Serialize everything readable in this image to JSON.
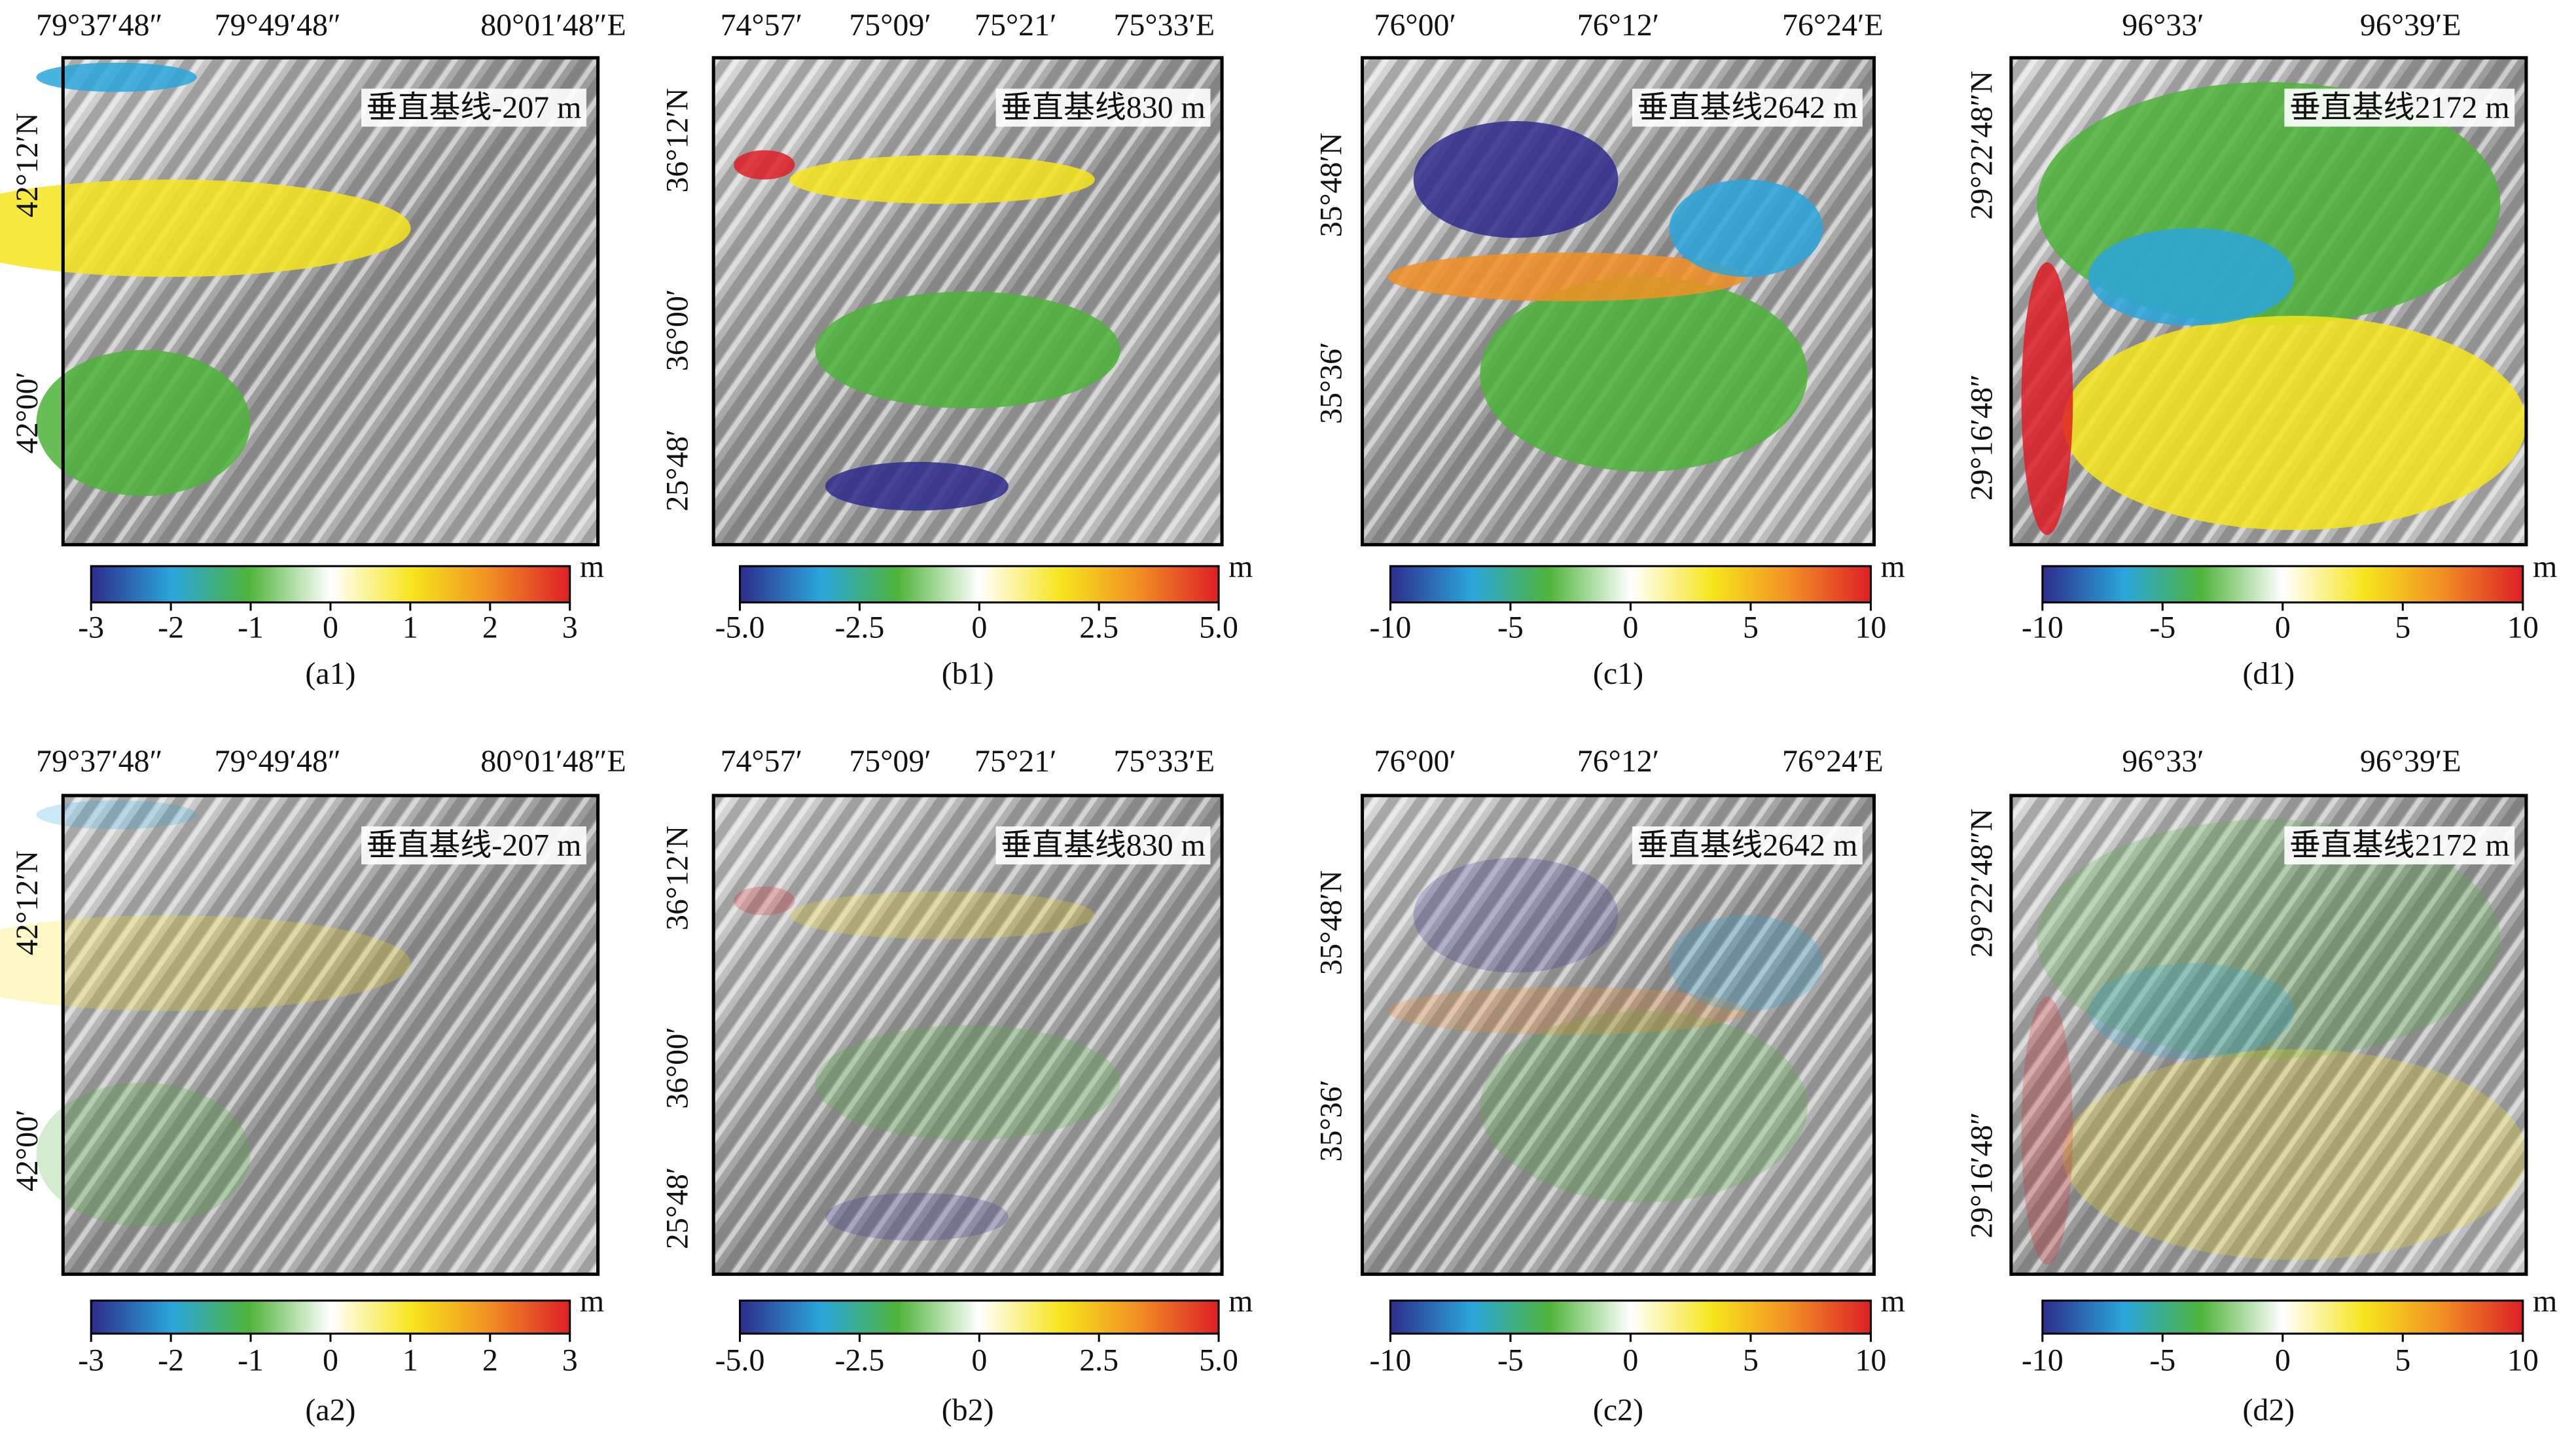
{
  "panels": [
    {
      "label": "(a1)",
      "baseline_label": "垂直基线-207 m",
      "lon_labels": [
        "79°37′48″",
        "79°49′48″",
        "80°01′48″E"
      ],
      "lat_labels": [
        "42°12′N",
        "42°00′"
      ],
      "colorbar": {
        "unit": "m",
        "clim": [
          -3,
          3
        ],
        "ticks": [
          -3,
          -2,
          -1,
          0,
          1,
          2,
          3
        ]
      }
    },
    {
      "label": "(b1)",
      "baseline_label": "垂直基线830 m",
      "lon_labels": [
        "74°57′",
        "75°09′",
        "75°21′",
        "75°33′E"
      ],
      "lat_labels": [
        "36°12′N",
        "36°00′",
        "25°48′"
      ],
      "colorbar": {
        "unit": "m",
        "clim": [
          -5,
          5
        ],
        "ticks": [
          {
            "value": -5,
            "label": "-5.0"
          },
          -2.5,
          0,
          2.5,
          {
            "value": 5,
            "label": "5.0"
          }
        ]
      }
    },
    {
      "label": "(c1)",
      "baseline_label": "垂直基线2642 m",
      "lon_labels": [
        "76°00′",
        "76°12′",
        "76°24′E"
      ],
      "lat_labels": [
        "35°48′N",
        "35°36′"
      ],
      "colorbar": {
        "unit": "m",
        "clim": [
          -10,
          10
        ],
        "ticks": [
          -10,
          -5,
          0,
          5,
          10
        ]
      }
    },
    {
      "label": "(d1)",
      "baseline_label": "垂直基线2172 m",
      "lon_labels": [
        "96°33′",
        "96°39′E"
      ],
      "lat_labels": [
        "29°22′48″N",
        "29°16′48″"
      ],
      "colorbar": {
        "unit": "m",
        "clim": [
          -10,
          10
        ],
        "ticks": [
          -10,
          -5,
          0,
          5,
          10
        ]
      }
    },
    {
      "label": "(a2)",
      "baseline_label": "垂直基线-207 m",
      "lon_labels": [
        "79°37′48″",
        "79°49′48″",
        "80°01′48″E"
      ],
      "lat_labels": [
        "42°12′N",
        "42°00′"
      ],
      "colorbar": {
        "unit": "m",
        "clim": [
          -3,
          3
        ],
        "ticks": [
          -3,
          -2,
          -1,
          0,
          1,
          2,
          3
        ]
      }
    },
    {
      "label": "(b2)",
      "baseline_label": "垂直基线830 m",
      "lon_labels": [
        "74°57′",
        "75°09′",
        "75°21′",
        "75°33′E"
      ],
      "lat_labels": [
        "36°12′N",
        "36°00′",
        "25°48′"
      ],
      "colorbar": {
        "unit": "m",
        "clim": [
          -5,
          5
        ],
        "ticks": [
          {
            "value": -5,
            "label": "-5.0"
          },
          -2.5,
          0,
          2.5,
          {
            "value": 5,
            "label": "5.0"
          }
        ]
      }
    },
    {
      "label": "(c2)",
      "baseline_label": "垂直基线2642 m",
      "lon_labels": [
        "76°00′",
        "76°12′",
        "76°24′E"
      ],
      "lat_labels": [
        "35°48′N",
        "35°36′"
      ],
      "colorbar": {
        "unit": "m",
        "clim": [
          -10,
          10
        ],
        "ticks": [
          -10,
          -5,
          0,
          5,
          10
        ]
      }
    },
    {
      "label": "(d2)",
      "baseline_label": "垂直基线2172 m",
      "lon_labels": [
        "96°33′",
        "96°39′E"
      ],
      "lat_labels": [
        "29°22′48″N",
        "29°16′48″"
      ],
      "colorbar": {
        "unit": "m",
        "clim": [
          -10,
          10
        ],
        "ticks": [
          -10,
          -5,
          0,
          5,
          10
        ]
      }
    }
  ]
}
